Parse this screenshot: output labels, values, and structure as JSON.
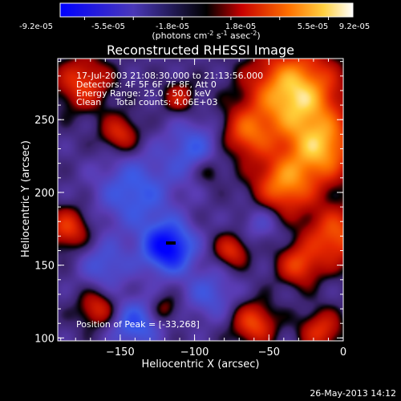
{
  "chart_data": {
    "type": "heatmap",
    "title": "Reconstructed RHESSI Image",
    "colorbar": {
      "tick_labels": [
        "-9.2e-05",
        "-5.5e-05",
        "-1.8e-05",
        "1.8e-05",
        "5.5e-05",
        "9.2e-05"
      ],
      "range": [
        -9.2e-05,
        9.2e-05
      ],
      "unit_parts": [
        "(photons cm",
        "-2",
        " s",
        "-1",
        " asec",
        "-2",
        ")"
      ]
    },
    "annotation_lines": [
      "17-Jul-2003 21:08:30.000 to 21:13:56.000",
      "Detectors: 4F 5F 6F 7F 8F, Att 0",
      "Energy Range: 25.0 - 50.0 keV",
      "Clean     Total counts: 4.06E+03"
    ],
    "peak_label": "Position of Peak = [-33,268]",
    "peak": {
      "x": -33,
      "y": 268
    },
    "xlabel": "Heliocentric X (arcsec)",
    "ylabel": "Heliocentric Y (arcsec)",
    "xlim": [
      -192,
      0
    ],
    "ylim": [
      98,
      292
    ],
    "xticks": [
      {
        "value": -150,
        "label": "−150"
      },
      {
        "value": -100,
        "label": "−100"
      },
      {
        "value": -50,
        "label": "−50"
      },
      {
        "value": 0,
        "label": "0"
      }
    ],
    "yticks": [
      {
        "value": 100,
        "label": "100"
      },
      {
        "value": 150,
        "label": "150"
      },
      {
        "value": 200,
        "label": "200"
      },
      {
        "value": 250,
        "label": "250"
      }
    ],
    "sources": [
      {
        "x": -33,
        "y": 268,
        "amp": 1.0,
        "sigma": 20
      },
      {
        "x": -15,
        "y": 230,
        "amp": 0.8,
        "sigma": 16
      },
      {
        "x": -40,
        "y": 205,
        "amp": 0.7,
        "sigma": 14
      },
      {
        "x": -65,
        "y": 240,
        "amp": 0.55,
        "sigma": 12
      },
      {
        "x": -5,
        "y": 170,
        "amp": 0.6,
        "sigma": 14
      },
      {
        "x": -30,
        "y": 150,
        "amp": 0.5,
        "sigma": 10
      },
      {
        "x": -175,
        "y": 275,
        "amp": 0.5,
        "sigma": 13
      },
      {
        "x": -150,
        "y": 240,
        "amp": 0.45,
        "sigma": 9
      },
      {
        "x": -185,
        "y": 175,
        "amp": 0.5,
        "sigma": 10
      },
      {
        "x": -75,
        "y": 160,
        "amp": 0.45,
        "sigma": 8
      },
      {
        "x": -110,
        "y": 265,
        "amp": 0.35,
        "sigma": 8
      },
      {
        "x": -60,
        "y": 110,
        "amp": 0.55,
        "sigma": 10
      },
      {
        "x": -15,
        "y": 105,
        "amp": 0.45,
        "sigma": 10
      },
      {
        "x": -165,
        "y": 120,
        "amp": 0.45,
        "sigma": 9
      },
      {
        "x": -120,
        "y": 120,
        "amp": 0.3,
        "sigma": 7
      },
      {
        "x": -90,
        "y": 215,
        "amp": 0.3,
        "sigma": 7
      },
      {
        "x": -118,
        "y": 162,
        "amp": -0.9,
        "sigma": 12
      },
      {
        "x": -140,
        "y": 200,
        "amp": -0.45,
        "sigma": 18
      },
      {
        "x": -100,
        "y": 230,
        "amp": -0.4,
        "sigma": 14
      },
      {
        "x": -140,
        "y": 110,
        "amp": -0.5,
        "sigma": 12
      },
      {
        "x": -160,
        "y": 150,
        "amp": -0.35,
        "sigma": 12
      },
      {
        "x": -90,
        "y": 130,
        "amp": -0.35,
        "sigma": 12
      },
      {
        "x": -55,
        "y": 180,
        "amp": -0.25,
        "sigma": 10
      }
    ]
  },
  "footer": {
    "date": "26-May-2013 14:12"
  }
}
